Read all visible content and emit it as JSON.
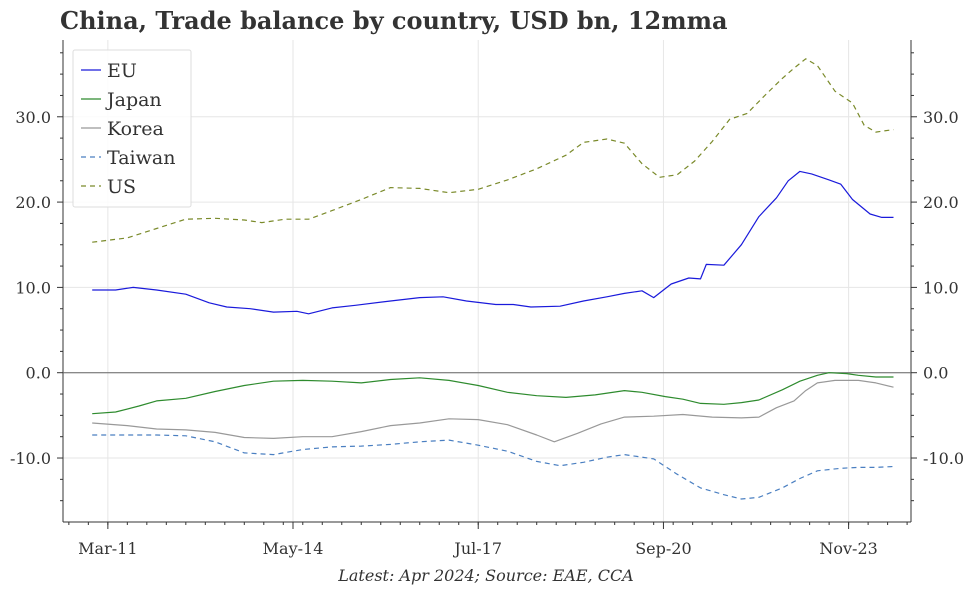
{
  "chart_data": {
    "type": "line",
    "title": "China, Trade balance by country, USD bn, 12mma",
    "source": "Latest: Apr 2024; Source: EAE, CCA",
    "xlabel": "",
    "ylabel": "",
    "ylim": [
      -17.5,
      39.0
    ],
    "xlim": [
      2010.4,
      2024.9
    ],
    "x_ticks": [
      {
        "label": "Mar-11",
        "value": 2011.167
      },
      {
        "label": "May-14",
        "value": 2014.333
      },
      {
        "label": "Jul-17",
        "value": 2017.5
      },
      {
        "label": "Sep-20",
        "value": 2020.667
      },
      {
        "label": "Nov-23",
        "value": 2023.833
      }
    ],
    "y_ticks": [
      {
        "label": "-10.0",
        "value": -10
      },
      {
        "label": "0.0",
        "value": 0
      },
      {
        "label": "10.0",
        "value": 10
      },
      {
        "label": "20.0",
        "value": 20
      },
      {
        "label": "30.0",
        "value": 30
      }
    ],
    "grid": true,
    "legend_position": "top-left",
    "zero_line": true,
    "series": [
      {
        "name": "EU",
        "color": "#1a1adb",
        "dash": "solid",
        "points": [
          [
            2010.9,
            9.7
          ],
          [
            2011.3,
            9.7
          ],
          [
            2011.6,
            10.0
          ],
          [
            2012.0,
            9.7
          ],
          [
            2012.5,
            9.2
          ],
          [
            2012.9,
            8.2
          ],
          [
            2013.2,
            7.7
          ],
          [
            2013.6,
            7.5
          ],
          [
            2014.0,
            7.1
          ],
          [
            2014.4,
            7.2
          ],
          [
            2014.6,
            6.9
          ],
          [
            2015.0,
            7.6
          ],
          [
            2015.4,
            7.9
          ],
          [
            2016.0,
            8.4
          ],
          [
            2016.5,
            8.8
          ],
          [
            2016.9,
            8.9
          ],
          [
            2017.3,
            8.4
          ],
          [
            2017.8,
            8.0
          ],
          [
            2018.1,
            8.0
          ],
          [
            2018.4,
            7.7
          ],
          [
            2018.9,
            7.8
          ],
          [
            2019.3,
            8.4
          ],
          [
            2019.7,
            8.9
          ],
          [
            2020.0,
            9.3
          ],
          [
            2020.3,
            9.6
          ],
          [
            2020.5,
            8.8
          ],
          [
            2020.8,
            10.4
          ],
          [
            2021.1,
            11.1
          ],
          [
            2021.3,
            11.0
          ],
          [
            2021.4,
            12.7
          ],
          [
            2021.7,
            12.6
          ],
          [
            2022.0,
            15.0
          ],
          [
            2022.3,
            18.3
          ],
          [
            2022.6,
            20.5
          ],
          [
            2022.8,
            22.5
          ],
          [
            2023.0,
            23.6
          ],
          [
            2023.2,
            23.3
          ],
          [
            2023.5,
            22.6
          ],
          [
            2023.7,
            22.1
          ],
          [
            2023.9,
            20.3
          ],
          [
            2024.2,
            18.6
          ],
          [
            2024.4,
            18.2
          ],
          [
            2024.6,
            18.2
          ]
        ]
      },
      {
        "name": "Japan",
        "color": "#2e8b2e",
        "dash": "solid",
        "points": [
          [
            2010.9,
            -4.8
          ],
          [
            2011.3,
            -4.6
          ],
          [
            2011.7,
            -3.9
          ],
          [
            2012.0,
            -3.3
          ],
          [
            2012.5,
            -3.0
          ],
          [
            2013.0,
            -2.2
          ],
          [
            2013.5,
            -1.5
          ],
          [
            2014.0,
            -1.0
          ],
          [
            2014.5,
            -0.9
          ],
          [
            2015.0,
            -1.0
          ],
          [
            2015.5,
            -1.2
          ],
          [
            2016.0,
            -0.8
          ],
          [
            2016.5,
            -0.6
          ],
          [
            2017.0,
            -0.9
          ],
          [
            2017.5,
            -1.5
          ],
          [
            2018.0,
            -2.3
          ],
          [
            2018.5,
            -2.7
          ],
          [
            2019.0,
            -2.9
          ],
          [
            2019.5,
            -2.6
          ],
          [
            2020.0,
            -2.1
          ],
          [
            2020.3,
            -2.3
          ],
          [
            2020.7,
            -2.8
          ],
          [
            2021.0,
            -3.1
          ],
          [
            2021.3,
            -3.6
          ],
          [
            2021.7,
            -3.7
          ],
          [
            2022.0,
            -3.5
          ],
          [
            2022.3,
            -3.2
          ],
          [
            2022.7,
            -2.0
          ],
          [
            2023.0,
            -1.0
          ],
          [
            2023.3,
            -0.3
          ],
          [
            2023.5,
            0.0
          ],
          [
            2023.8,
            -0.1
          ],
          [
            2024.0,
            -0.3
          ],
          [
            2024.3,
            -0.5
          ],
          [
            2024.6,
            -0.5
          ]
        ]
      },
      {
        "name": "Korea",
        "color": "#999999",
        "dash": "solid",
        "points": [
          [
            2010.9,
            -5.9
          ],
          [
            2011.5,
            -6.2
          ],
          [
            2012.0,
            -6.6
          ],
          [
            2012.5,
            -6.7
          ],
          [
            2013.0,
            -7.0
          ],
          [
            2013.5,
            -7.6
          ],
          [
            2014.0,
            -7.7
          ],
          [
            2014.5,
            -7.5
          ],
          [
            2015.0,
            -7.5
          ],
          [
            2015.5,
            -6.9
          ],
          [
            2016.0,
            -6.2
          ],
          [
            2016.5,
            -5.9
          ],
          [
            2017.0,
            -5.4
          ],
          [
            2017.5,
            -5.5
          ],
          [
            2018.0,
            -6.1
          ],
          [
            2018.5,
            -7.3
          ],
          [
            2018.8,
            -8.1
          ],
          [
            2019.2,
            -7.1
          ],
          [
            2019.6,
            -6.0
          ],
          [
            2020.0,
            -5.2
          ],
          [
            2020.5,
            -5.1
          ],
          [
            2021.0,
            -4.9
          ],
          [
            2021.5,
            -5.2
          ],
          [
            2022.0,
            -5.3
          ],
          [
            2022.3,
            -5.2
          ],
          [
            2022.6,
            -4.1
          ],
          [
            2022.9,
            -3.3
          ],
          [
            2023.1,
            -2.1
          ],
          [
            2023.3,
            -1.2
          ],
          [
            2023.6,
            -0.9
          ],
          [
            2024.0,
            -0.9
          ],
          [
            2024.3,
            -1.2
          ],
          [
            2024.6,
            -1.7
          ]
        ]
      },
      {
        "name": "Taiwan",
        "color": "#4a7fc1",
        "dash": "dashed",
        "points": [
          [
            2010.9,
            -7.3
          ],
          [
            2011.5,
            -7.3
          ],
          [
            2012.0,
            -7.3
          ],
          [
            2012.5,
            -7.4
          ],
          [
            2013.0,
            -8.1
          ],
          [
            2013.5,
            -9.4
          ],
          [
            2014.0,
            -9.6
          ],
          [
            2014.5,
            -9.0
          ],
          [
            2015.0,
            -8.7
          ],
          [
            2015.5,
            -8.6
          ],
          [
            2016.0,
            -8.4
          ],
          [
            2016.5,
            -8.1
          ],
          [
            2017.0,
            -7.9
          ],
          [
            2017.5,
            -8.5
          ],
          [
            2018.0,
            -9.2
          ],
          [
            2018.5,
            -10.4
          ],
          [
            2018.9,
            -10.9
          ],
          [
            2019.3,
            -10.5
          ],
          [
            2019.7,
            -9.9
          ],
          [
            2020.0,
            -9.6
          ],
          [
            2020.5,
            -10.1
          ],
          [
            2020.9,
            -11.9
          ],
          [
            2021.3,
            -13.5
          ],
          [
            2021.7,
            -14.3
          ],
          [
            2022.0,
            -14.8
          ],
          [
            2022.3,
            -14.6
          ],
          [
            2022.7,
            -13.5
          ],
          [
            2023.0,
            -12.4
          ],
          [
            2023.3,
            -11.5
          ],
          [
            2023.7,
            -11.2
          ],
          [
            2024.0,
            -11.1
          ],
          [
            2024.3,
            -11.1
          ],
          [
            2024.6,
            -11.0
          ]
        ]
      },
      {
        "name": "US",
        "color": "#7a8a2a",
        "dash": "dashed",
        "points": [
          [
            2010.9,
            15.3
          ],
          [
            2011.5,
            15.8
          ],
          [
            2012.0,
            16.9
          ],
          [
            2012.5,
            18.0
          ],
          [
            2013.0,
            18.1
          ],
          [
            2013.5,
            17.9
          ],
          [
            2013.8,
            17.6
          ],
          [
            2014.2,
            18.0
          ],
          [
            2014.6,
            18.0
          ],
          [
            2015.0,
            19.0
          ],
          [
            2015.5,
            20.3
          ],
          [
            2016.0,
            21.7
          ],
          [
            2016.5,
            21.6
          ],
          [
            2017.0,
            21.1
          ],
          [
            2017.5,
            21.5
          ],
          [
            2018.0,
            22.6
          ],
          [
            2018.5,
            23.9
          ],
          [
            2019.0,
            25.5
          ],
          [
            2019.3,
            27.0
          ],
          [
            2019.7,
            27.4
          ],
          [
            2020.0,
            26.9
          ],
          [
            2020.3,
            24.5
          ],
          [
            2020.6,
            22.9
          ],
          [
            2020.9,
            23.2
          ],
          [
            2021.2,
            24.8
          ],
          [
            2021.5,
            27.1
          ],
          [
            2021.8,
            29.7
          ],
          [
            2022.1,
            30.4
          ],
          [
            2022.4,
            32.5
          ],
          [
            2022.7,
            34.5
          ],
          [
            2022.9,
            35.7
          ],
          [
            2023.1,
            36.8
          ],
          [
            2023.3,
            36.0
          ],
          [
            2023.6,
            33.0
          ],
          [
            2023.9,
            31.6
          ],
          [
            2024.1,
            29.0
          ],
          [
            2024.3,
            28.2
          ],
          [
            2024.6,
            28.5
          ]
        ]
      }
    ]
  }
}
